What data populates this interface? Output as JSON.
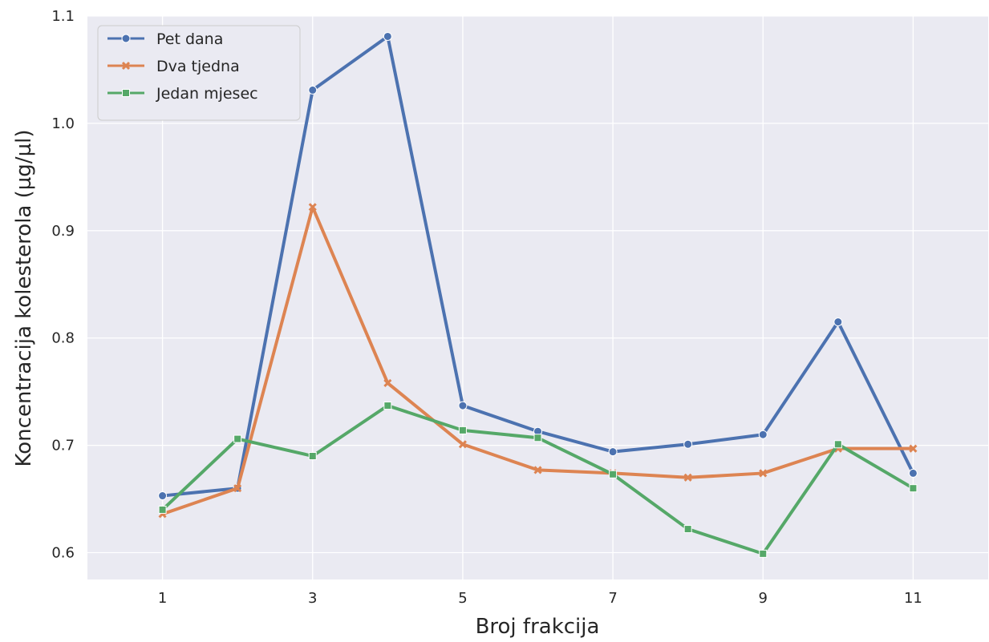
{
  "chart_data": {
    "type": "line",
    "title": "",
    "xlabel": "Broj frakcija",
    "ylabel": "Koncentracija kolesterola (µg/µl)",
    "x": [
      1,
      2,
      3,
      4,
      5,
      6,
      7,
      8,
      9,
      10,
      11
    ],
    "xticks": [
      "1",
      "3",
      "5",
      "7",
      "9",
      "11"
    ],
    "xlim": [
      0,
      12
    ],
    "yticks": [
      "0.6",
      "0.7",
      "0.8",
      "0.9",
      "1.0",
      "1.1"
    ],
    "ylim": [
      0.575,
      1.1
    ],
    "grid": true,
    "legend_position": "top-left",
    "background": "#eaeaf2",
    "series": [
      {
        "name": "Pet dana",
        "color": "#4c72b0",
        "marker": "circle",
        "values": [
          0.653,
          0.66,
          1.031,
          1.081,
          0.737,
          0.713,
          0.694,
          0.701,
          0.71,
          0.815,
          0.674
        ]
      },
      {
        "name": "Dva tjedna",
        "color": "#dd8452",
        "marker": "x",
        "values": [
          0.636,
          0.66,
          0.922,
          0.758,
          0.701,
          0.677,
          0.674,
          0.67,
          0.674,
          0.697,
          0.697
        ]
      },
      {
        "name": "Jedan mjesec",
        "color": "#55a868",
        "marker": "square",
        "values": [
          0.64,
          0.706,
          0.69,
          0.737,
          0.714,
          0.707,
          0.673,
          0.622,
          0.599,
          0.701,
          0.66
        ]
      }
    ]
  }
}
